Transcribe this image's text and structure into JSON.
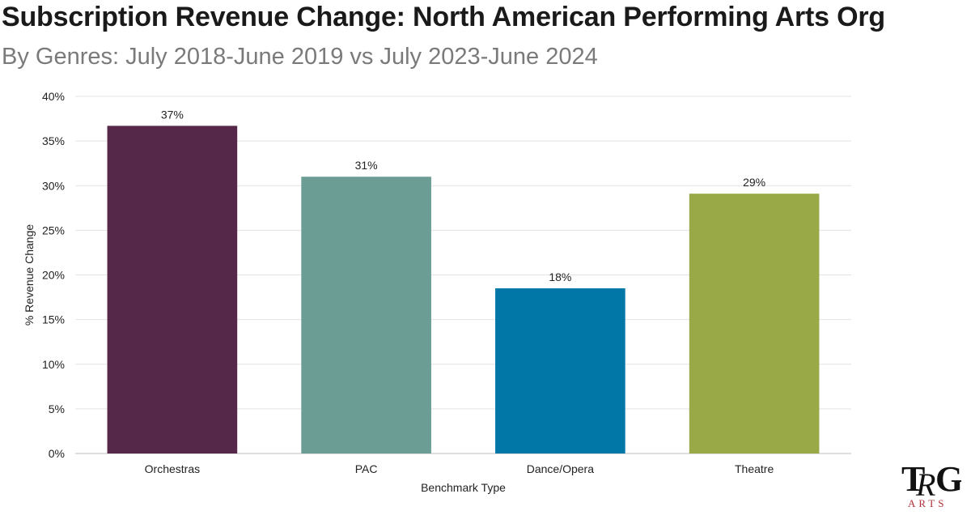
{
  "header": {
    "title": "Subscription Revenue Change: North American Performing Arts Org",
    "subtitle": "By Genres: July 2018-June 2019 vs July 2023-June 2024"
  },
  "logo": {
    "text": "TRG ARTS"
  },
  "chart_data": {
    "type": "bar",
    "title": "Subscription Revenue Change: North American Performing Arts Org",
    "subtitle": "By Genres: July 2018-June 2019 vs July 2023-June 2024",
    "xlabel": "Benchmark Type",
    "ylabel": "% Revenue Change",
    "categories": [
      "Orchestras",
      "PAC",
      "Dance/Opera",
      "Theatre"
    ],
    "values": [
      36.7,
      31.0,
      18.5,
      29.1
    ],
    "data_labels": [
      "37%",
      "31%",
      "18%",
      "29%"
    ],
    "colors": [
      "#55284a",
      "#6b9d95",
      "#0077a6",
      "#9aa948"
    ],
    "ylim": [
      0,
      40
    ],
    "yticks": [
      0,
      5,
      10,
      15,
      20,
      25,
      30,
      35,
      40
    ],
    "ytick_labels": [
      "0%",
      "5%",
      "10%",
      "15%",
      "20%",
      "25%",
      "30%",
      "35%",
      "40%"
    ],
    "grid": true,
    "legend": "none"
  }
}
